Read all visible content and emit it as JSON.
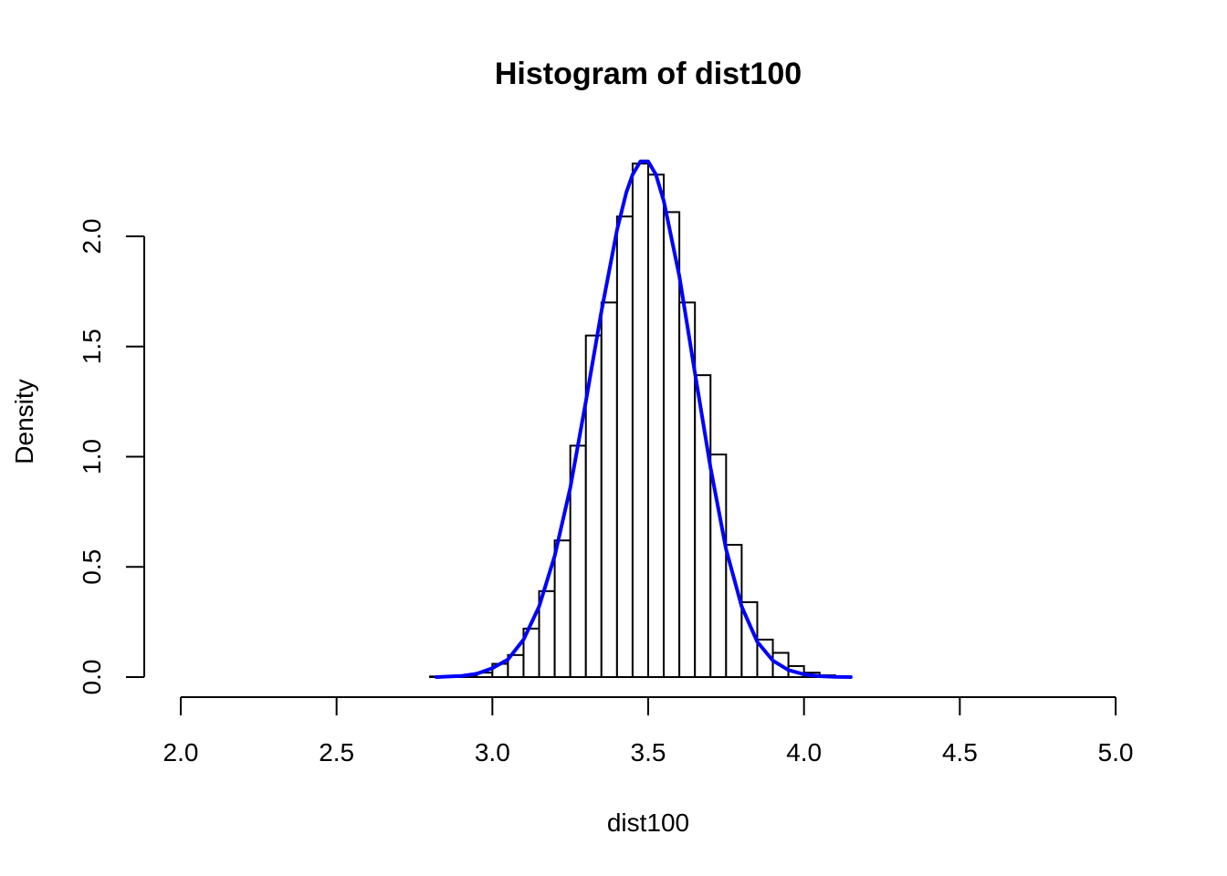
{
  "chart_data": {
    "type": "bar",
    "subtype": "histogram-with-density-curve",
    "title": "Histogram of dist100",
    "xlabel": "dist100",
    "ylabel": "Density",
    "xlim": [
      2.0,
      5.0
    ],
    "ylim": [
      0,
      2.35
    ],
    "x_ticks": [
      "2.0",
      "2.5",
      "3.0",
      "3.5",
      "4.0",
      "4.5",
      "5.0"
    ],
    "y_ticks": [
      "0.0",
      "0.5",
      "1.0",
      "1.5",
      "2.0"
    ],
    "grid": false,
    "bin_width": 0.05,
    "bin_starts": [
      2.8,
      2.85,
      2.9,
      2.95,
      3.0,
      3.05,
      3.1,
      3.15,
      3.2,
      3.25,
      3.3,
      3.35,
      3.4,
      3.45,
      3.5,
      3.55,
      3.6,
      3.65,
      3.7,
      3.75,
      3.8,
      3.85,
      3.9,
      3.95,
      4.0,
      4.05,
      4.1
    ],
    "density": [
      0.003,
      0.002,
      0.004,
      0.02,
      0.06,
      0.1,
      0.22,
      0.39,
      0.62,
      1.05,
      1.55,
      1.7,
      2.09,
      2.33,
      2.28,
      2.11,
      1.7,
      1.37,
      1.01,
      0.6,
      0.34,
      0.17,
      0.11,
      0.05,
      0.02,
      0.008,
      0.003
    ],
    "bar_color": "#ffffff",
    "bar_border_color": "#000000",
    "curve": {
      "color": "#0000ff",
      "x": [
        2.82,
        2.9,
        2.95,
        3.0,
        3.05,
        3.1,
        3.15,
        3.2,
        3.25,
        3.3,
        3.35,
        3.4,
        3.43,
        3.45,
        3.475,
        3.5,
        3.525,
        3.55,
        3.6,
        3.65,
        3.7,
        3.75,
        3.8,
        3.85,
        3.9,
        3.95,
        4.0,
        4.05,
        4.1,
        4.15
      ],
      "y": [
        0.0,
        0.005,
        0.015,
        0.04,
        0.08,
        0.17,
        0.32,
        0.55,
        0.86,
        1.25,
        1.66,
        2.03,
        2.2,
        2.28,
        2.34,
        2.34,
        2.28,
        2.16,
        1.82,
        1.38,
        0.95,
        0.58,
        0.32,
        0.16,
        0.075,
        0.032,
        0.012,
        0.004,
        0.001,
        0.0
      ]
    }
  }
}
